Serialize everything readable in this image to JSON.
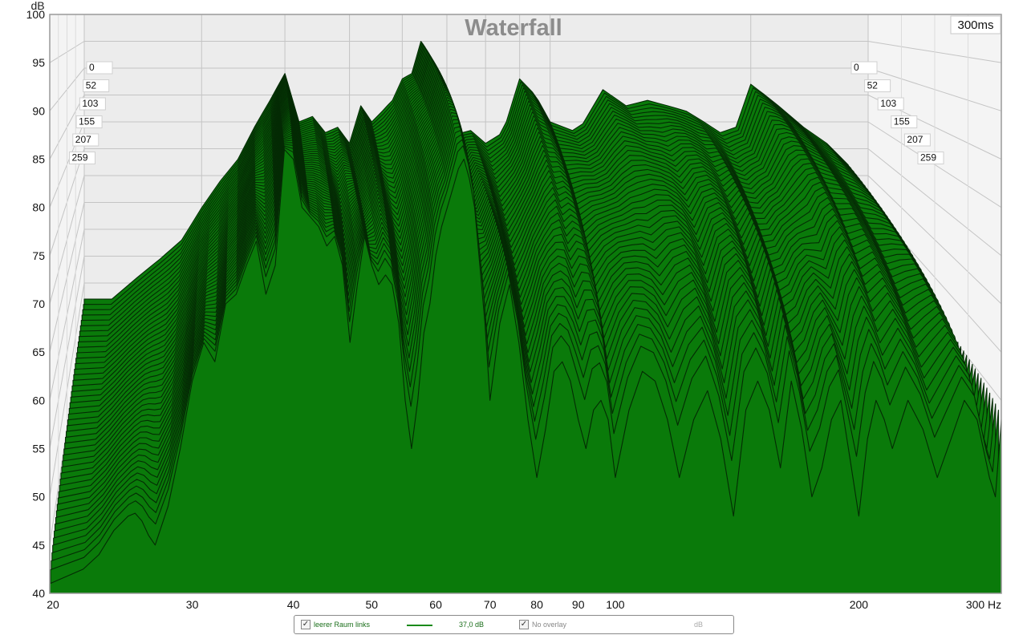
{
  "chart_data": {
    "type": "area",
    "style": "3d waterfall",
    "title": "Waterfall",
    "time_window_label": "300ms",
    "ylabel": "dB",
    "xunit": "Hz",
    "x_scale": "log",
    "xlim": [
      20,
      300
    ],
    "ylim": [
      40,
      100
    ],
    "y_ticks": [
      "40",
      "45",
      "50",
      "55",
      "60",
      "65",
      "70",
      "75",
      "80",
      "85",
      "90",
      "95",
      "100"
    ],
    "x_ticks": [
      "20",
      "30",
      "40",
      "50",
      "60",
      "70",
      "80",
      "90",
      "100",
      "200",
      "300 Hz"
    ],
    "x_tick_values": [
      20,
      30,
      40,
      50,
      60,
      70,
      80,
      90,
      100,
      200,
      300
    ],
    "time_slices_ms": [
      "0",
      "52",
      "103",
      "155",
      "207",
      "259"
    ],
    "colors": {
      "fill": "#0a7a0a",
      "stroke": "#042b04",
      "floor": "#ececec",
      "wall": "#f4f4f4",
      "grid": "#c4c4c4"
    },
    "front_slice": {
      "freq_hz": [
        20,
        22,
        23,
        24,
        25,
        25.5,
        26,
        26.5,
        27,
        28,
        29,
        30,
        31,
        32,
        33,
        34,
        35,
        36,
        37,
        38,
        39,
        40,
        41,
        42,
        43,
        44,
        45,
        46,
        47,
        48,
        49,
        50,
        51,
        52,
        53,
        54,
        55,
        56,
        57,
        58,
        59,
        60,
        61,
        62,
        63,
        64,
        65,
        66,
        67,
        68,
        69,
        70,
        72,
        74,
        76,
        78,
        80,
        82,
        84,
        86,
        88,
        90,
        92,
        94,
        96,
        98,
        100,
        104,
        108,
        112,
        116,
        120,
        125,
        130,
        135,
        140,
        145,
        150,
        155,
        160,
        165,
        170,
        175,
        180,
        185,
        190,
        195,
        200,
        205,
        210,
        215,
        220,
        230,
        240,
        250,
        260,
        270,
        280,
        290,
        295,
        300
      ],
      "db": [
        41,
        42.5,
        44,
        46.5,
        48,
        48.3,
        47.5,
        46,
        45,
        49,
        55,
        62,
        66,
        64,
        70,
        71,
        74,
        76.5,
        71,
        74,
        86,
        85,
        80,
        79,
        78,
        76,
        77,
        74,
        66,
        72,
        77,
        74,
        72,
        73,
        72,
        68,
        60,
        55,
        60,
        67,
        70,
        75,
        78,
        80,
        82,
        84,
        85,
        83,
        80,
        74,
        68,
        60,
        68,
        72,
        66,
        58,
        52,
        57,
        63,
        64,
        62,
        58,
        55,
        59,
        60,
        58,
        52,
        59,
        63,
        62,
        58,
        52,
        58,
        61,
        56,
        48,
        59,
        62,
        59,
        53,
        62,
        57,
        50,
        53,
        58,
        60,
        54,
        48,
        56,
        60,
        58,
        55,
        60,
        57,
        52,
        56,
        60,
        58,
        52,
        50,
        58
      ],
      "note": "approximate values read from the front-most (0 ms) visible trace"
    },
    "back_slice_0ms": {
      "freq_hz": [
        22,
        24,
        26,
        28,
        30,
        32,
        34,
        36,
        38,
        40,
        42,
        44,
        46,
        48,
        50,
        52,
        54,
        56,
        58,
        60,
        62,
        64,
        66,
        68,
        70,
        72,
        75,
        80,
        85,
        90,
        95,
        100,
        110,
        120,
        130,
        140,
        150,
        160,
        170,
        180,
        190,
        200,
        210,
        220,
        240,
        260,
        280,
        300
      ],
      "db": [
        47,
        51,
        54.5,
        58,
        64,
        69,
        73,
        79,
        84,
        89,
        80,
        81,
        78,
        79,
        76,
        83,
        80,
        82,
        84,
        88,
        89,
        95,
        92,
        86,
        81,
        76,
        79,
        76,
        78,
        88,
        85,
        80,
        78,
        86,
        83,
        84,
        83,
        82,
        80,
        78,
        79,
        87,
        85,
        83,
        79,
        76,
        72,
        62
      ],
      "note": "approximate values of the rear-most visible trace"
    }
  },
  "legend": {
    "series_checkbox": "✓",
    "series_name": "leerer Raum links",
    "series_value": "37,0 dB",
    "overlay_checkbox": "✓",
    "overlay_label": "No overlay",
    "overlay_unit": "dB"
  }
}
